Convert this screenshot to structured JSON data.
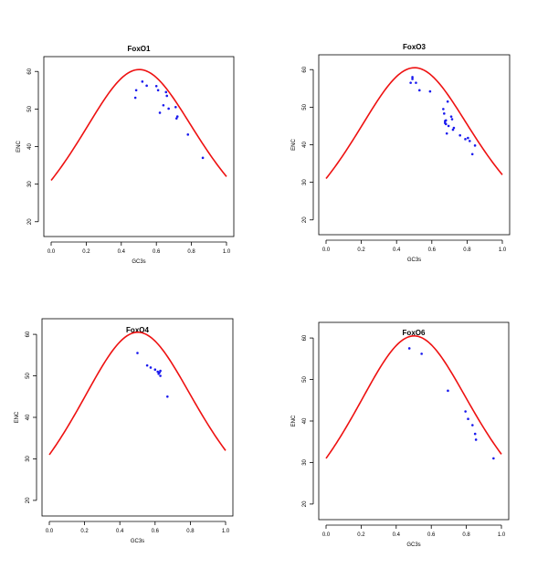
{
  "colors": {
    "curve": "#ee1111",
    "points": "#1a1aee",
    "axes": "#000000"
  },
  "chart_data": [
    {
      "type": "scatter",
      "title": "FoxO1",
      "xlabel": "GC3s",
      "ylabel": "ENC",
      "xlim": [
        0,
        1
      ],
      "ylim": [
        18,
        62
      ],
      "xticks": [
        0.0,
        0.2,
        0.4,
        0.6,
        0.8,
        1.0
      ],
      "xtick_labels": [
        "0.0",
        "0.2",
        "0.4",
        "0.6",
        "0.8",
        "1.0"
      ],
      "yticks": [
        20,
        30,
        40,
        50,
        60
      ],
      "ytick_labels": [
        "20",
        "30",
        "40",
        "50",
        "60"
      ],
      "grid": false,
      "expected_curve": "ENC = 2 + s + 29 / (s^2 + (1 - s)^2)",
      "series": [
        {
          "x": [
            0.48,
            0.485,
            0.52,
            0.545,
            0.6,
            0.61,
            0.62,
            0.64,
            0.655,
            0.66,
            0.67,
            0.71,
            0.715,
            0.72,
            0.78,
            0.865
          ],
          "y": [
            53,
            55,
            57.3,
            56.2,
            56.1,
            55,
            49,
            51,
            54.5,
            53.5,
            50.1,
            50.5,
            47.5,
            48,
            43.2,
            37
          ]
        }
      ]
    },
    {
      "type": "scatter",
      "title": "FoxO3",
      "xlabel": "GC3s",
      "ylabel": "ENC",
      "xlim": [
        0,
        1
      ],
      "ylim": [
        18,
        62
      ],
      "xticks": [
        0.0,
        0.2,
        0.4,
        0.6,
        0.8,
        1.0
      ],
      "xtick_labels": [
        "0.0",
        "0.2",
        "0.4",
        "0.6",
        "0.8",
        "1.0"
      ],
      "yticks": [
        20,
        30,
        40,
        50,
        60
      ],
      "ytick_labels": [
        "20",
        "30",
        "40",
        "50",
        "60"
      ],
      "grid": false,
      "expected_curve": "ENC = 2 + s + 29 / (s^2 + (1 - s)^2)",
      "series": [
        {
          "x": [
            0.48,
            0.49,
            0.49,
            0.51,
            0.53,
            0.59,
            0.665,
            0.67,
            0.675,
            0.675,
            0.68,
            0.68,
            0.685,
            0.69,
            0.695,
            0.71,
            0.715,
            0.72,
            0.725,
            0.76,
            0.79,
            0.805,
            0.815,
            0.83,
            0.845
          ],
          "y": [
            56.5,
            57.5,
            58,
            56.5,
            54.5,
            54.2,
            49.5,
            48.3,
            46.3,
            45.8,
            46.5,
            45.5,
            43,
            51.5,
            45,
            47.5,
            46.8,
            44,
            44.5,
            42.5,
            41.5,
            41.8,
            41,
            37.5,
            39.8
          ]
        }
      ]
    },
    {
      "type": "scatter",
      "title": "FoxO4",
      "xlabel": "GC3s",
      "ylabel": "ENC",
      "xlim": [
        0,
        1
      ],
      "ylim": [
        18,
        62
      ],
      "xticks": [
        0.0,
        0.2,
        0.4,
        0.6,
        0.8,
        1.0
      ],
      "xtick_labels": [
        "0.0",
        "0.2",
        "0.4",
        "0.6",
        "0.8",
        "1.0"
      ],
      "yticks": [
        20,
        30,
        40,
        50,
        60
      ],
      "ytick_labels": [
        "20",
        "30",
        "40",
        "50",
        "60"
      ],
      "grid": false,
      "expected_curve": "ENC = 2 + s + 29 / (s^2 + (1 - s)^2)",
      "series": [
        {
          "x": [
            0.5,
            0.555,
            0.575,
            0.6,
            0.615,
            0.62,
            0.625,
            0.63,
            0.63,
            0.67
          ],
          "y": [
            55.5,
            52.5,
            52,
            51.5,
            51,
            50.5,
            50.8,
            51.2,
            50,
            45
          ]
        }
      ]
    },
    {
      "type": "scatter",
      "title": "FoxO6",
      "xlabel": "GC3s",
      "ylabel": "ENC",
      "xlim": [
        0,
        1
      ],
      "ylim": [
        18,
        62
      ],
      "xticks": [
        0.0,
        0.2,
        0.4,
        0.6,
        0.8,
        1.0
      ],
      "xtick_labels": [
        "0.0",
        "0.2",
        "0.4",
        "0.6",
        "0.8",
        "1.0"
      ],
      "yticks": [
        20,
        30,
        40,
        50,
        60
      ],
      "ytick_labels": [
        "20",
        "30",
        "40",
        "50",
        "60"
      ],
      "grid": false,
      "expected_curve": "ENC = 2 + s + 29 / (s^2 + (1 - s)^2)",
      "series": [
        {
          "x": [
            0.475,
            0.545,
            0.695,
            0.795,
            0.81,
            0.835,
            0.85,
            0.855,
            0.955
          ],
          "y": [
            57.5,
            56.2,
            47.3,
            42.3,
            40.5,
            39,
            36.9,
            35.5,
            31
          ]
        }
      ]
    }
  ]
}
